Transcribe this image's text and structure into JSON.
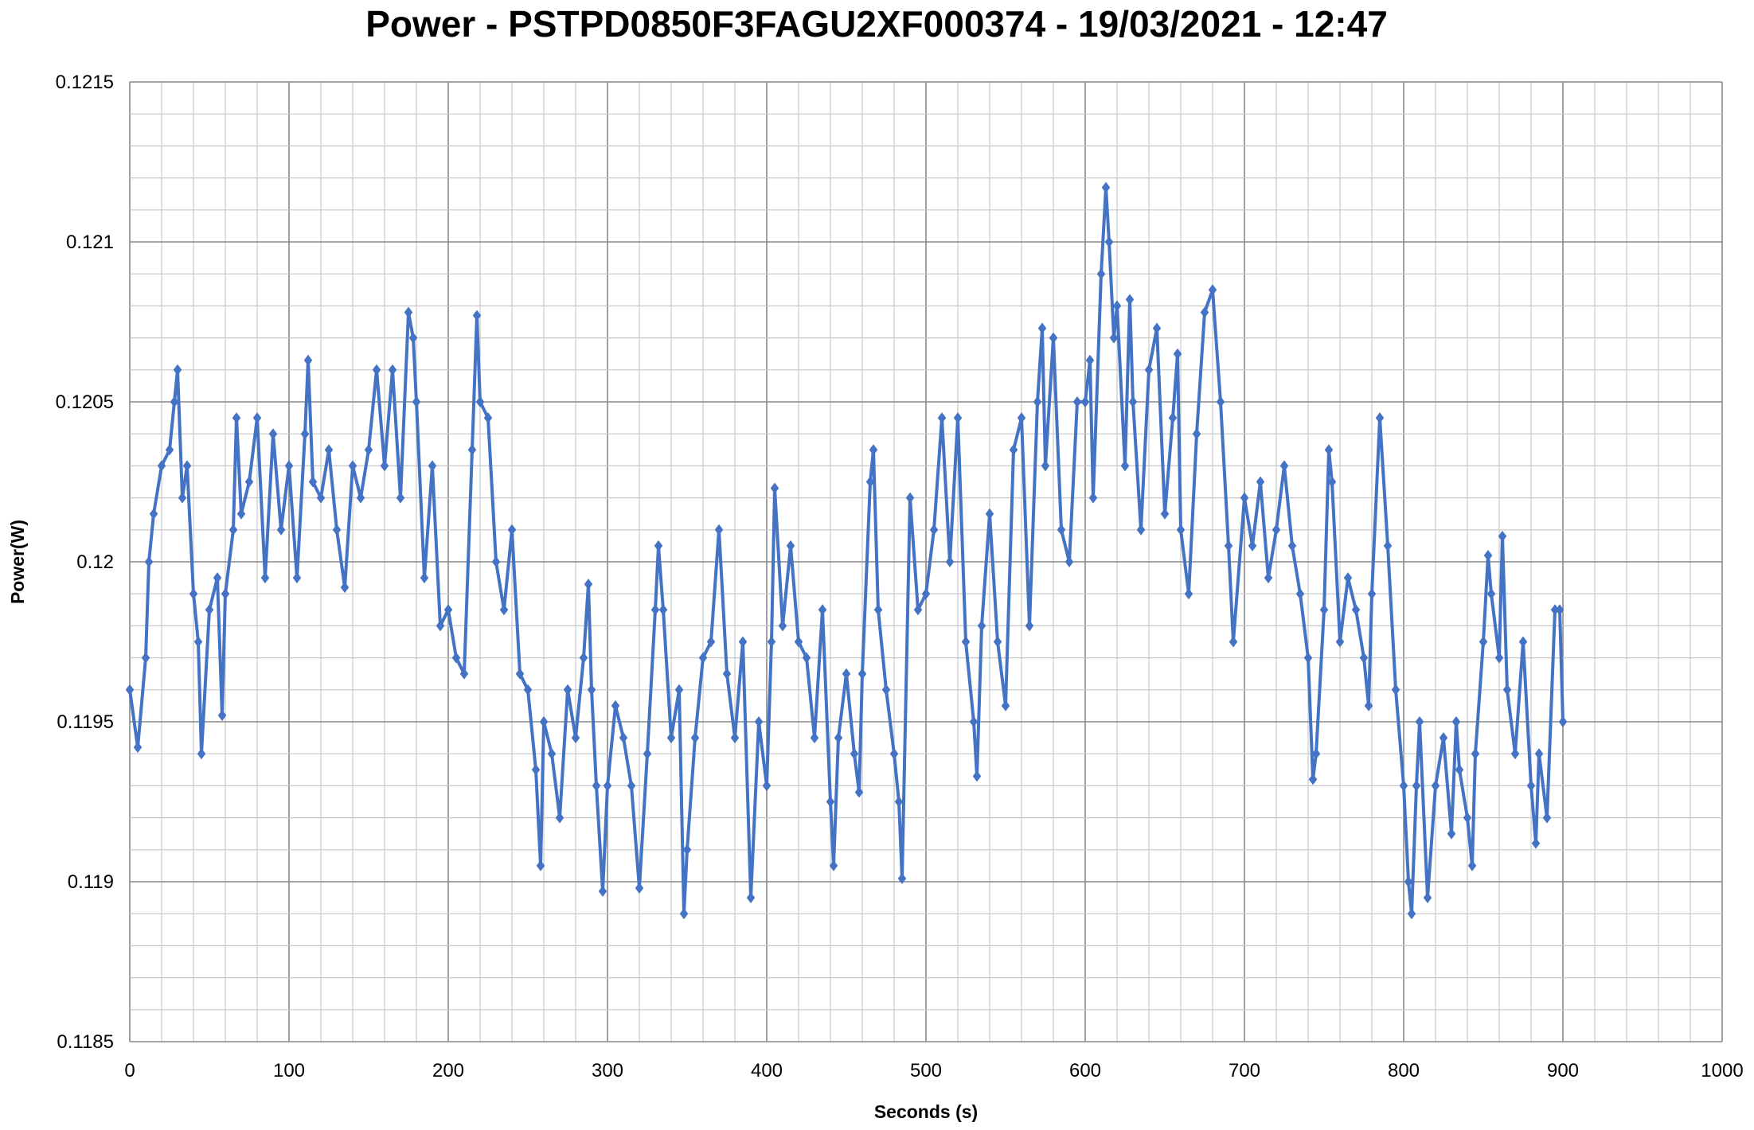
{
  "chart_data": {
    "type": "line",
    "title": "Power - PSTPD0850F3FAGU2XF000374 - 19/03/2021 - 12:47",
    "xlabel": "Seconds (s)",
    "ylabel": "Power(W)",
    "xlim": [
      0,
      1000
    ],
    "ylim": [
      0.1185,
      0.1215
    ],
    "x_ticks": [
      "0",
      "100",
      "200",
      "300",
      "400",
      "500",
      "600",
      "700",
      "800",
      "900",
      "1000"
    ],
    "y_ticks": [
      "0.1185",
      "0.119",
      "0.1195",
      "0.12",
      "0.1205",
      "0.121",
      "0.1215"
    ],
    "x_major_step": 100,
    "x_minor_step": 20,
    "y_major_step": 0.0005,
    "y_minor_step": 0.0001,
    "grid": true,
    "legend": "none",
    "marker": "diamond",
    "color": "#4472C4",
    "series": [
      {
        "x": [
          0,
          5,
          10,
          12,
          15,
          20,
          25,
          28,
          30,
          33,
          36,
          40,
          43,
          45,
          50,
          55,
          58,
          60,
          65,
          67,
          70,
          75,
          80,
          85,
          90,
          95,
          100,
          105,
          110,
          112,
          115,
          120,
          125,
          130,
          135,
          140,
          145,
          150,
          155,
          160,
          165,
          170,
          175,
          178,
          180,
          185,
          190,
          195,
          200,
          205,
          210,
          215,
          218,
          220,
          225,
          230,
          235,
          240,
          245,
          250,
          255,
          258,
          260,
          265,
          270,
          275,
          280,
          285,
          288,
          290,
          293,
          297,
          300,
          305,
          310,
          315,
          320,
          325,
          330,
          332,
          335,
          340,
          345,
          348,
          350,
          355,
          360,
          365,
          370,
          375,
          380,
          385,
          390,
          395,
          400,
          403,
          405,
          410,
          415,
          420,
          425,
          430,
          435,
          440,
          442,
          445,
          450,
          455,
          458,
          460,
          465,
          467,
          470,
          475,
          480,
          483,
          485,
          490,
          495,
          500,
          505,
          510,
          515,
          520,
          525,
          530,
          532,
          535,
          540,
          545,
          550,
          555,
          560,
          565,
          570,
          573,
          575,
          580,
          585,
          590,
          595,
          600,
          603,
          605,
          610,
          613,
          615,
          618,
          620,
          625,
          628,
          630,
          635,
          640,
          645,
          650,
          655,
          658,
          660,
          665,
          670,
          675,
          680,
          685,
          690,
          693,
          700,
          705,
          710,
          715,
          720,
          725,
          730,
          735,
          740,
          743,
          745,
          750,
          753,
          755,
          760,
          765,
          770,
          775,
          778,
          780,
          785,
          790,
          795,
          800,
          803,
          805,
          808,
          810,
          815,
          820,
          825,
          830,
          833,
          835,
          840,
          843,
          845,
          850,
          853,
          855,
          860,
          862,
          865,
          870,
          875,
          880,
          883,
          885,
          890,
          895,
          898,
          900
        ],
        "y": [
          0.1196,
          0.11942,
          0.1197,
          0.12,
          0.12015,
          0.1203,
          0.12035,
          0.1205,
          0.1206,
          0.1202,
          0.1203,
          0.1199,
          0.11975,
          0.1194,
          0.11985,
          0.11995,
          0.11952,
          0.1199,
          0.1201,
          0.12045,
          0.12015,
          0.12025,
          0.12045,
          0.11995,
          0.1204,
          0.1201,
          0.1203,
          0.11995,
          0.1204,
          0.12063,
          0.12025,
          0.1202,
          0.12035,
          0.1201,
          0.11992,
          0.1203,
          0.1202,
          0.12035,
          0.1206,
          0.1203,
          0.1206,
          0.1202,
          0.12078,
          0.1207,
          0.1205,
          0.11995,
          0.1203,
          0.1198,
          0.11985,
          0.1197,
          0.11965,
          0.12035,
          0.12077,
          0.1205,
          0.12045,
          0.12,
          0.11985,
          0.1201,
          0.11965,
          0.1196,
          0.11935,
          0.11905,
          0.1195,
          0.1194,
          0.1192,
          0.1196,
          0.11945,
          0.1197,
          0.11993,
          0.1196,
          0.1193,
          0.11897,
          0.1193,
          0.11955,
          0.11945,
          0.1193,
          0.11898,
          0.1194,
          0.11985,
          0.12005,
          0.11985,
          0.11945,
          0.1196,
          0.1189,
          0.1191,
          0.11945,
          0.1197,
          0.11975,
          0.1201,
          0.11965,
          0.11945,
          0.11975,
          0.11895,
          0.1195,
          0.1193,
          0.11975,
          0.12023,
          0.1198,
          0.12005,
          0.11975,
          0.1197,
          0.11945,
          0.11985,
          0.11925,
          0.11905,
          0.11945,
          0.11965,
          0.1194,
          0.11928,
          0.11965,
          0.12025,
          0.12035,
          0.11985,
          0.1196,
          0.1194,
          0.11925,
          0.11901,
          0.1202,
          0.11985,
          0.1199,
          0.1201,
          0.12045,
          0.12,
          0.12045,
          0.11975,
          0.1195,
          0.11933,
          0.1198,
          0.12015,
          0.11975,
          0.11955,
          0.12035,
          0.12045,
          0.1198,
          0.1205,
          0.12073,
          0.1203,
          0.1207,
          0.1201,
          0.12,
          0.1205,
          0.1205,
          0.12063,
          0.1202,
          0.1209,
          0.12117,
          0.121,
          0.1207,
          0.1208,
          0.1203,
          0.12082,
          0.1205,
          0.1201,
          0.1206,
          0.12073,
          0.12015,
          0.12045,
          0.12065,
          0.1201,
          0.1199,
          0.1204,
          0.12078,
          0.12085,
          0.1205,
          0.12005,
          0.11975,
          0.1202,
          0.12005,
          0.12025,
          0.11995,
          0.1201,
          0.1203,
          0.12005,
          0.1199,
          0.1197,
          0.11932,
          0.1194,
          0.11985,
          0.12035,
          0.12025,
          0.11975,
          0.11995,
          0.11985,
          0.1197,
          0.11955,
          0.1199,
          0.12045,
          0.12005,
          0.1196,
          0.1193,
          0.119,
          0.1189,
          0.1193,
          0.1195,
          0.11895,
          0.1193,
          0.11945,
          0.11915,
          0.1195,
          0.11935,
          0.1192,
          0.11905,
          0.1194,
          0.11975,
          0.12002,
          0.1199,
          0.1197,
          0.12008,
          0.1196,
          0.1194,
          0.11975,
          0.1193,
          0.11912,
          0.1194,
          0.1192,
          0.11985,
          0.11985,
          0.1195
        ]
      }
    ]
  }
}
